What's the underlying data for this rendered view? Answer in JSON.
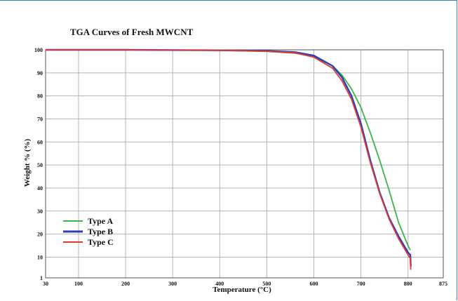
{
  "chart_data": {
    "type": "line",
    "title": "TGA Curves of Fresh MWCNT",
    "xlabel": "Temperature (°C)",
    "ylabel": "Weight % (%)",
    "xlim": [
      30,
      875
    ],
    "ylim": [
      1,
      100
    ],
    "x_ticks": [
      "30",
      "100",
      "200",
      "300",
      "400",
      "500",
      "600",
      "700",
      "800",
      "875"
    ],
    "y_ticks": [
      "1",
      "10",
      "20",
      "30",
      "40",
      "50",
      "60",
      "70",
      "80",
      "90",
      "100"
    ],
    "grid": true,
    "legend_position": "bottom-left",
    "series": [
      {
        "name": "Type A",
        "color": "#3cb44b",
        "x": [
          30,
          200,
          400,
          500,
          560,
          600,
          640,
          660,
          680,
          700,
          720,
          740,
          760,
          780,
          800,
          805
        ],
        "y": [
          100,
          100,
          99.8,
          99.3,
          98.5,
          97,
          93,
          89,
          83,
          75,
          64,
          52,
          39,
          25,
          15,
          13
        ]
      },
      {
        "name": "Type B",
        "color": "#2a3fb5",
        "x": [
          30,
          200,
          400,
          500,
          560,
          600,
          640,
          660,
          680,
          700,
          720,
          740,
          760,
          780,
          800,
          805,
          806
        ],
        "y": [
          100,
          100,
          99.8,
          99.5,
          99,
          97.5,
          93,
          88,
          80,
          68,
          52,
          38,
          27,
          19,
          12,
          11,
          6
        ]
      },
      {
        "name": "Type C",
        "color": "#e53935",
        "x": [
          30,
          200,
          400,
          500,
          560,
          600,
          640,
          660,
          680,
          700,
          720,
          740,
          760,
          780,
          800,
          805,
          806
        ],
        "y": [
          100,
          100,
          99.8,
          99.4,
          98.7,
          96.8,
          92,
          86.5,
          78.5,
          66.5,
          51,
          37.5,
          26.5,
          18,
          11,
          9.5,
          4.5
        ]
      }
    ]
  }
}
